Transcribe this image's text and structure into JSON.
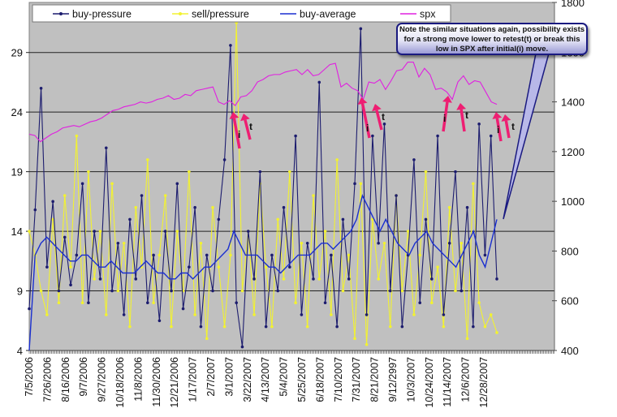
{
  "chart_data": {
    "type": "line",
    "title": "",
    "xlabel": "",
    "ylabel": "",
    "y_left_lim": [
      4,
      33.2
    ],
    "y_left_ticks": [
      "4",
      "9",
      "14",
      "19",
      "24",
      "29"
    ],
    "y_right_lim": [
      400,
      1800
    ],
    "y_right_ticks": [
      "400",
      "600",
      "800",
      "1000",
      "1200",
      "1400",
      "1600",
      "1800"
    ],
    "grid": true,
    "legend_position": "top",
    "x_tick_labels": [
      "7/5/2006",
      "7/26/2006",
      "8/16/2006",
      "9/7/2006",
      "9/27/2006",
      "10/18/2006",
      "11/8/2006",
      "11/30/2006",
      "12/21/2006",
      "1/17/2007",
      "2/7/2007",
      "3/1/2007",
      "3/22/2007",
      "4/13/2007",
      "5/4/2007",
      "5/25/2007",
      "6/18/2007",
      "7/10/2007",
      "7/31/2007",
      "8/21/2007",
      "9/12/2997",
      "10/3/2007",
      "10/24/2007",
      "11/14/2007",
      "12/6/2007",
      "12/28/2007"
    ],
    "series": [
      {
        "name": "buy-pressure",
        "axis": "left",
        "color": "#1c1c6e",
        "marker": true,
        "values": [
          7.5,
          15.8,
          26,
          11,
          16.5,
          9,
          13.5,
          9.5,
          12,
          18,
          8,
          14,
          10,
          21,
          9,
          13,
          7,
          15,
          10,
          17,
          8,
          12,
          6.5,
          14,
          9,
          18,
          7.5,
          11,
          16,
          6,
          12,
          9,
          15,
          20,
          29.6,
          8,
          4.3,
          14,
          10,
          19,
          6,
          12,
          9,
          16,
          11,
          22,
          7,
          13,
          10,
          26.5,
          8,
          12,
          6,
          15,
          10,
          18,
          31,
          7,
          22,
          13,
          23,
          9,
          17,
          6,
          12,
          20,
          8,
          15,
          10,
          22,
          7,
          13,
          19,
          9,
          16,
          6,
          23,
          12,
          22,
          10
        ]
      },
      {
        "name": "sell/pressure",
        "axis": "left",
        "color": "#f2f230",
        "marker": true,
        "values": [
          14,
          12,
          9,
          7,
          15,
          8,
          17,
          11,
          22,
          8,
          19,
          10,
          14,
          7,
          18,
          9,
          13,
          6,
          16,
          11,
          20,
          8,
          12,
          17,
          6,
          14,
          9,
          19,
          7,
          13,
          5,
          16,
          11,
          6,
          12,
          31.5,
          9,
          14,
          7,
          18,
          11,
          6,
          15,
          10,
          19,
          8,
          13,
          6,
          17,
          10,
          14,
          7,
          20,
          9,
          12,
          5,
          18,
          4.5,
          15,
          10,
          13,
          6,
          17,
          9,
          14,
          7,
          12,
          19,
          8,
          11,
          6,
          16,
          9,
          13,
          5,
          18,
          8,
          6,
          7,
          5.5
        ]
      },
      {
        "name": "buy-average",
        "axis": "left",
        "color": "#1a2fd0",
        "marker": false,
        "values": [
          4,
          12,
          13,
          13.5,
          13,
          12.5,
          12,
          11.5,
          11.5,
          12,
          12,
          11.5,
          11,
          11,
          11.5,
          11,
          10.5,
          10.5,
          10.5,
          11,
          11.5,
          11,
          10.5,
          10.5,
          10,
          10,
          10.5,
          10.5,
          10,
          10.5,
          11,
          11,
          11.5,
          12,
          12.5,
          14,
          13,
          12,
          12,
          12,
          11.5,
          11,
          11,
          10.5,
          11,
          11.5,
          12,
          12,
          12,
          12.5,
          13,
          13,
          12.5,
          13,
          13.5,
          14,
          15,
          17,
          16,
          15,
          14,
          15,
          14,
          13,
          12.5,
          12,
          13,
          13.5,
          14,
          13,
          12.5,
          12,
          11.5,
          11,
          12,
          13,
          14,
          12,
          11,
          13,
          15
        ]
      },
      {
        "name": "spx",
        "axis": "right",
        "color": "#e020e0",
        "marker": false,
        "values": [
          1270,
          1265,
          1240,
          1255,
          1270,
          1280,
          1295,
          1300,
          1305,
          1300,
          1310,
          1320,
          1325,
          1335,
          1350,
          1365,
          1370,
          1380,
          1385,
          1390,
          1400,
          1395,
          1400,
          1410,
          1415,
          1425,
          1410,
          1415,
          1430,
          1425,
          1445,
          1450,
          1455,
          1460,
          1400,
          1390,
          1405,
          1385,
          1420,
          1425,
          1445,
          1480,
          1490,
          1505,
          1510,
          1510,
          1520,
          1525,
          1530,
          1510,
          1530,
          1505,
          1510,
          1530,
          1550,
          1555,
          1460,
          1475,
          1455,
          1445,
          1410,
          1480,
          1475,
          1490,
          1450,
          1485,
          1525,
          1530,
          1560,
          1560,
          1500,
          1535,
          1510,
          1450,
          1455,
          1440,
          1410,
          1480,
          1505,
          1470,
          1485,
          1480,
          1440,
          1400,
          1390
        ]
      }
    ],
    "annotations": [
      {
        "label": "i"
      },
      {
        "label": "t"
      },
      {
        "label": "i"
      },
      {
        "label": "t"
      },
      {
        "label": "i"
      },
      {
        "label": "t"
      },
      {
        "label": "i"
      },
      {
        "label": "t"
      }
    ],
    "callout": "Note the similar situations again, possibility exists for a strong move lower to retest(t) or break this low in SPX after initial(i) move.",
    "colors": {
      "plot_bg": "#c0c0c0",
      "arrow": "#ee1e72"
    }
  }
}
